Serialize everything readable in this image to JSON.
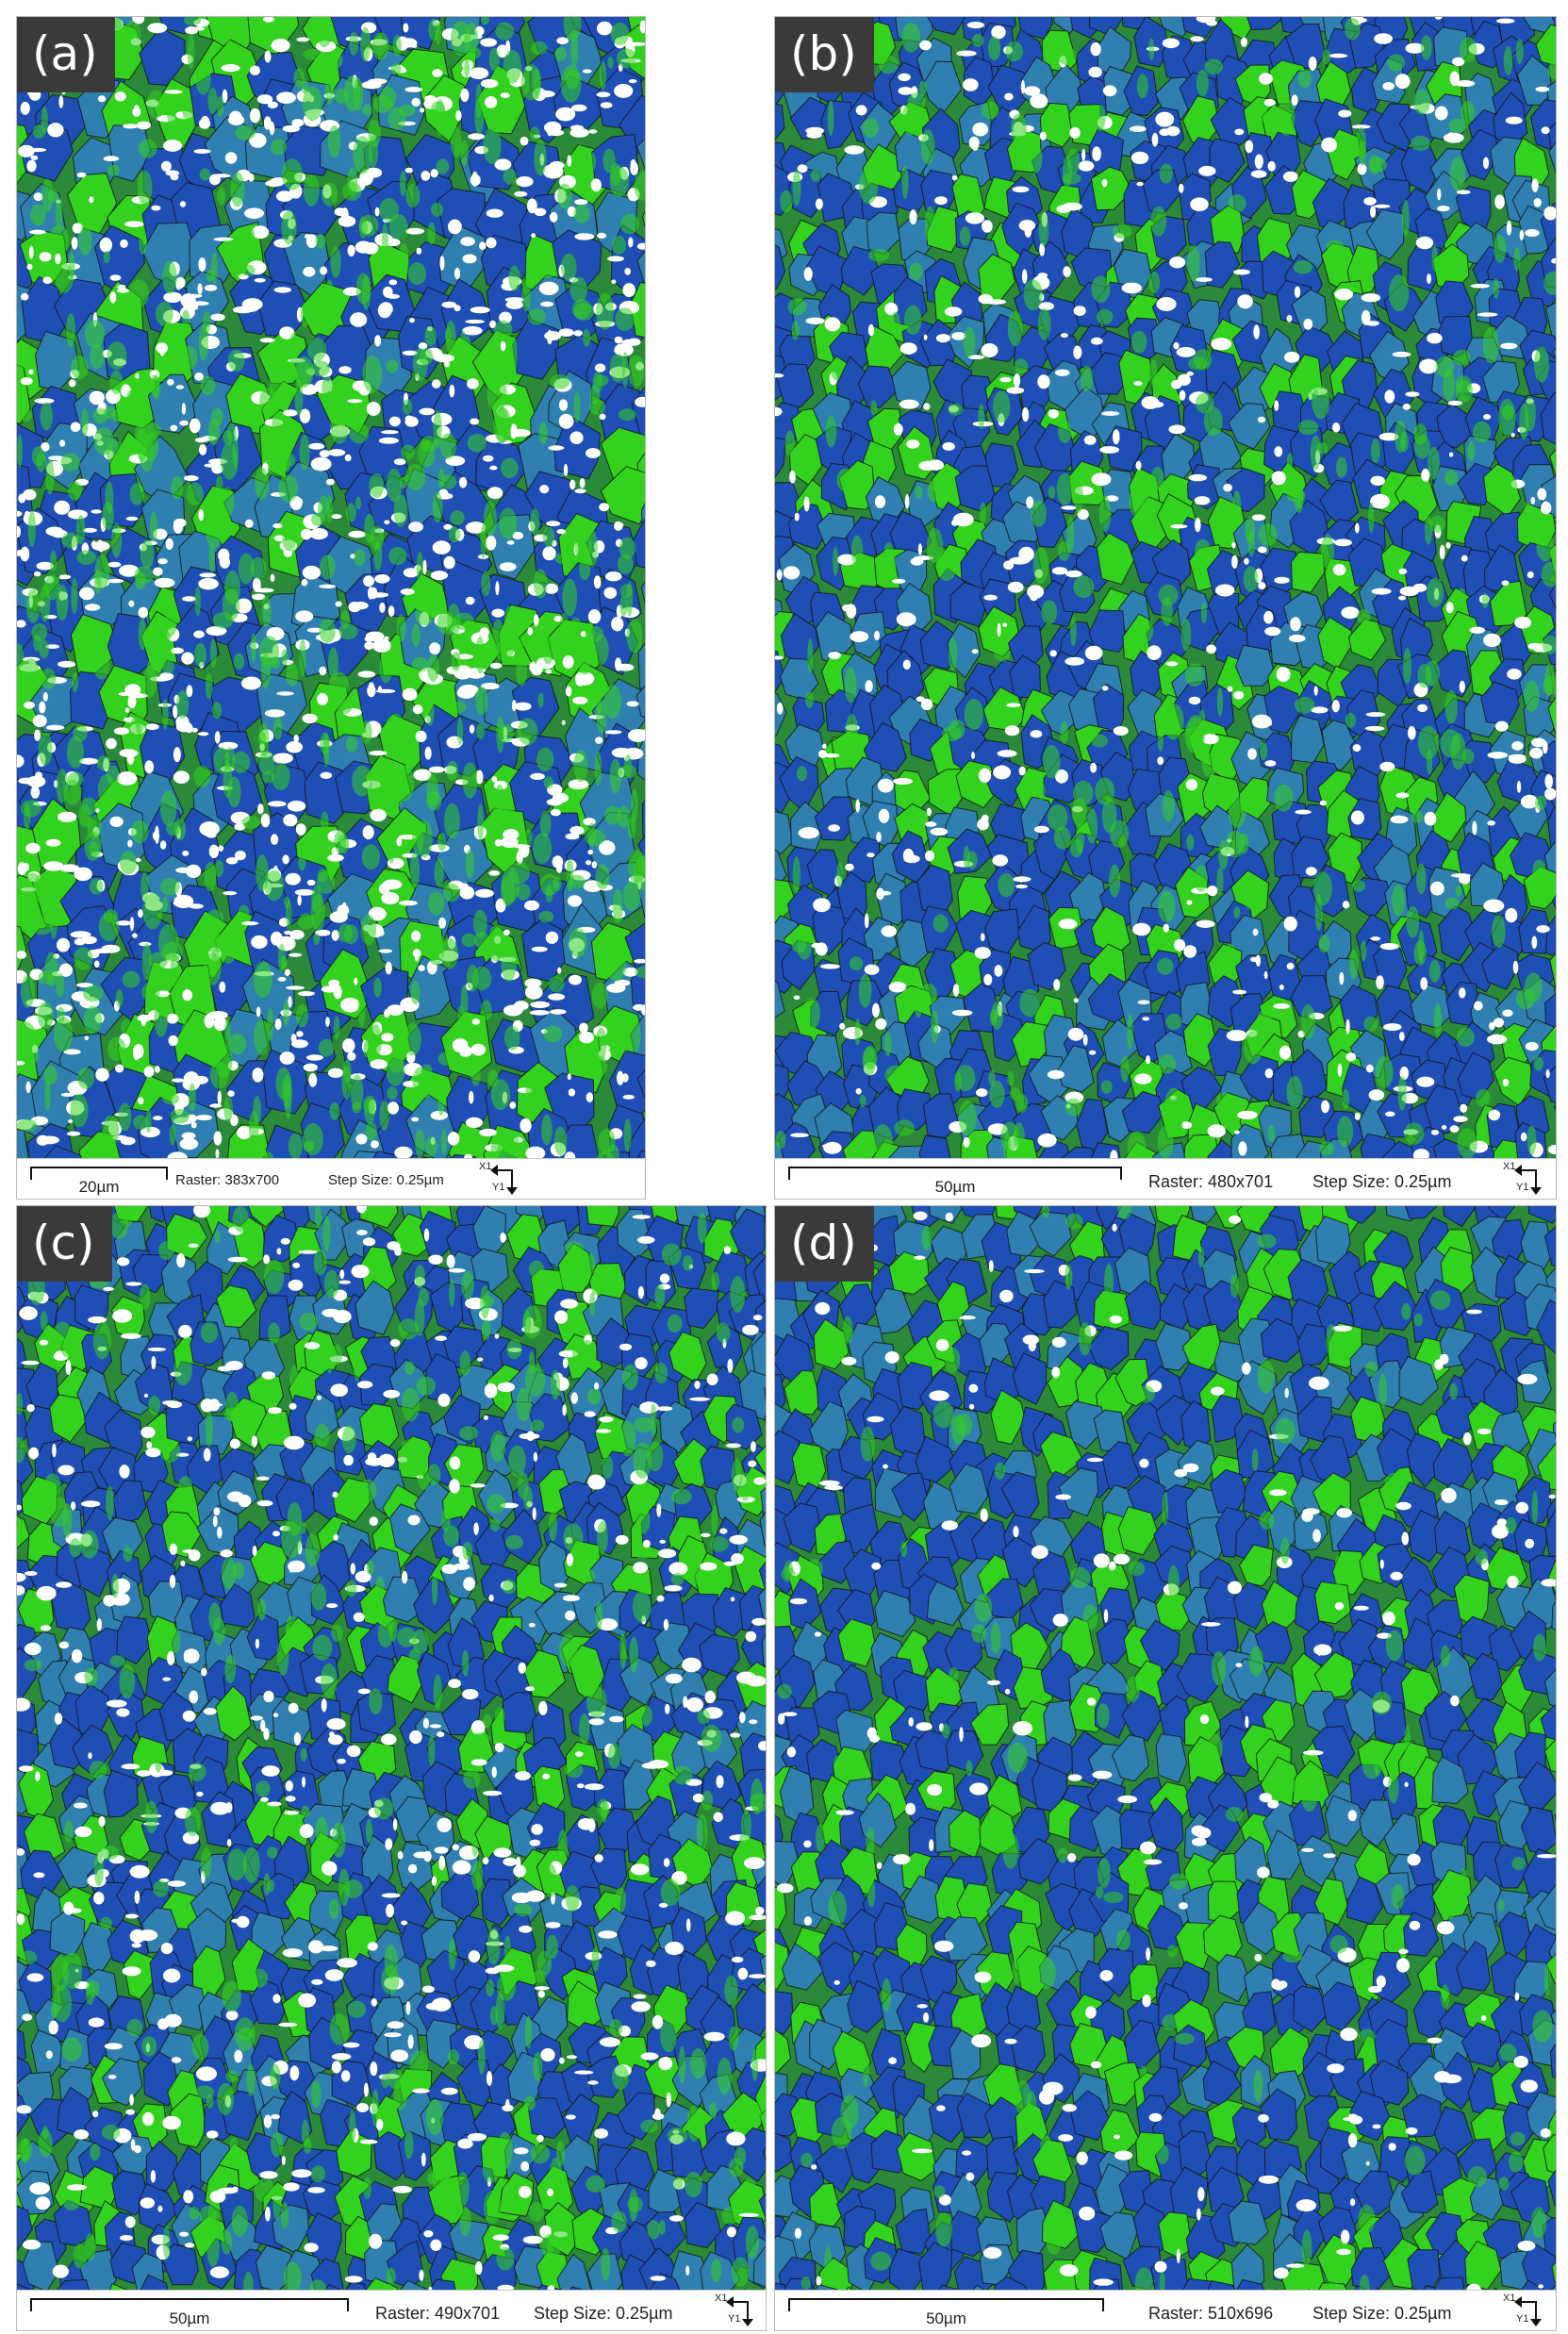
{
  "panels": [
    {
      "id": "a",
      "label": "(a)",
      "scale": "20µm",
      "raster": "Raster: 383x700",
      "step": "Step Size: 0.25µm",
      "x_axis": "X1",
      "y_axis": "Y1",
      "white_fraction": 0.3
    },
    {
      "id": "b",
      "label": "(b)",
      "scale": "50µm",
      "raster": "Raster: 480x701",
      "step": "Step Size: 0.25µm",
      "x_axis": "X1",
      "y_axis": "Y1",
      "white_fraction": 0.12
    },
    {
      "id": "c",
      "label": "(c)",
      "scale": "50µm",
      "raster": "Raster: 490x701",
      "step": "Step Size: 0.25µm",
      "x_axis": "X1",
      "y_axis": "Y1",
      "white_fraction": 0.14
    },
    {
      "id": "d",
      "label": "(d)",
      "scale": "50µm",
      "raster": "Raster: 510x696",
      "step": "Step Size: 0.25µm",
      "x_axis": "X1",
      "y_axis": "Y1",
      "white_fraction": 0.05
    }
  ],
  "colors": {
    "blue": "#1f4fb5",
    "green": "#33d21f",
    "white": "#ffffff",
    "boundary": "#111111",
    "tag_bg": "#3a3a3a"
  },
  "legend_icon": "axis-orientation-icon"
}
